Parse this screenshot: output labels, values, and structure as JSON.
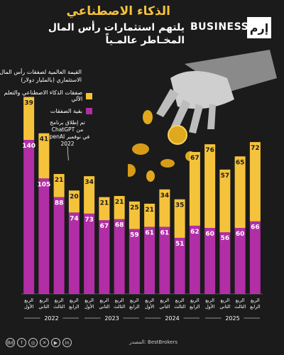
{
  "header": {
    "title": "الذكاء الاصطناعي",
    "subtitle": "يلتهم استثمارات رأس المال المخـاطر عالمـياً",
    "brand_word": "BUSINESS",
    "brand_logo": "إرم"
  },
  "legend": {
    "title": "القيمة العالمية لصفقات رأس المال الاستثماري (بالمليار دولار)",
    "items": [
      {
        "label": "صفقات الذكاء الاصطناعي والتعلم الآلي",
        "color": "#f5c33b"
      },
      {
        "label": "بقية الصفقات",
        "color": "#b12ea6"
      }
    ]
  },
  "annotation": {
    "text": "تم إطلاق برنامج ChatGPT من OpenAI في نوفمبر 2022"
  },
  "source": "المصدر: BestBrokers",
  "social": {
    "icons": [
      "linkedin-icon",
      "youtube-icon",
      "x-icon",
      "instagram-icon",
      "facebook-icon",
      "bestbrokers-text"
    ],
    "handle": "Bd"
  },
  "chart_data": {
    "type": "bar",
    "stacked": true,
    "categories": [
      "الربع الأول",
      "الربع الثاني",
      "الربع الثالث",
      "الربع الرابع",
      "الربع الأول",
      "الربع الثاني",
      "الربع الثالث",
      "الربع الرابع",
      "الربع الأول",
      "الربع الثاني",
      "الربع الثالث",
      "الربع الرابع",
      "الربع الأول",
      "الربع الثاني",
      "الربع الثالث",
      "الربع الرابع"
    ],
    "years": [
      {
        "label": "2022",
        "start": 0,
        "end": 3
      },
      {
        "label": "2023",
        "start": 4,
        "end": 7
      },
      {
        "label": "2024",
        "start": 8,
        "end": 11
      },
      {
        "label": "2025",
        "start": 12,
        "end": 15
      }
    ],
    "series": [
      {
        "name": "بقية الصفقات",
        "color": "#b12ea6",
        "values": [
          140,
          105,
          88,
          74,
          73,
          67,
          68,
          59,
          61,
          61,
          51,
          62,
          60,
          56,
          60,
          66
        ]
      },
      {
        "name": "صفقات الذكاء الاصطناعي والتعلم الآلي",
        "color": "#f5c33b",
        "values": [
          39,
          41,
          21,
          20,
          34,
          21,
          21,
          25,
          21,
          34,
          35,
          67,
          76,
          57,
          65,
          72
        ]
      }
    ],
    "ylim": [
      0,
      180
    ]
  }
}
